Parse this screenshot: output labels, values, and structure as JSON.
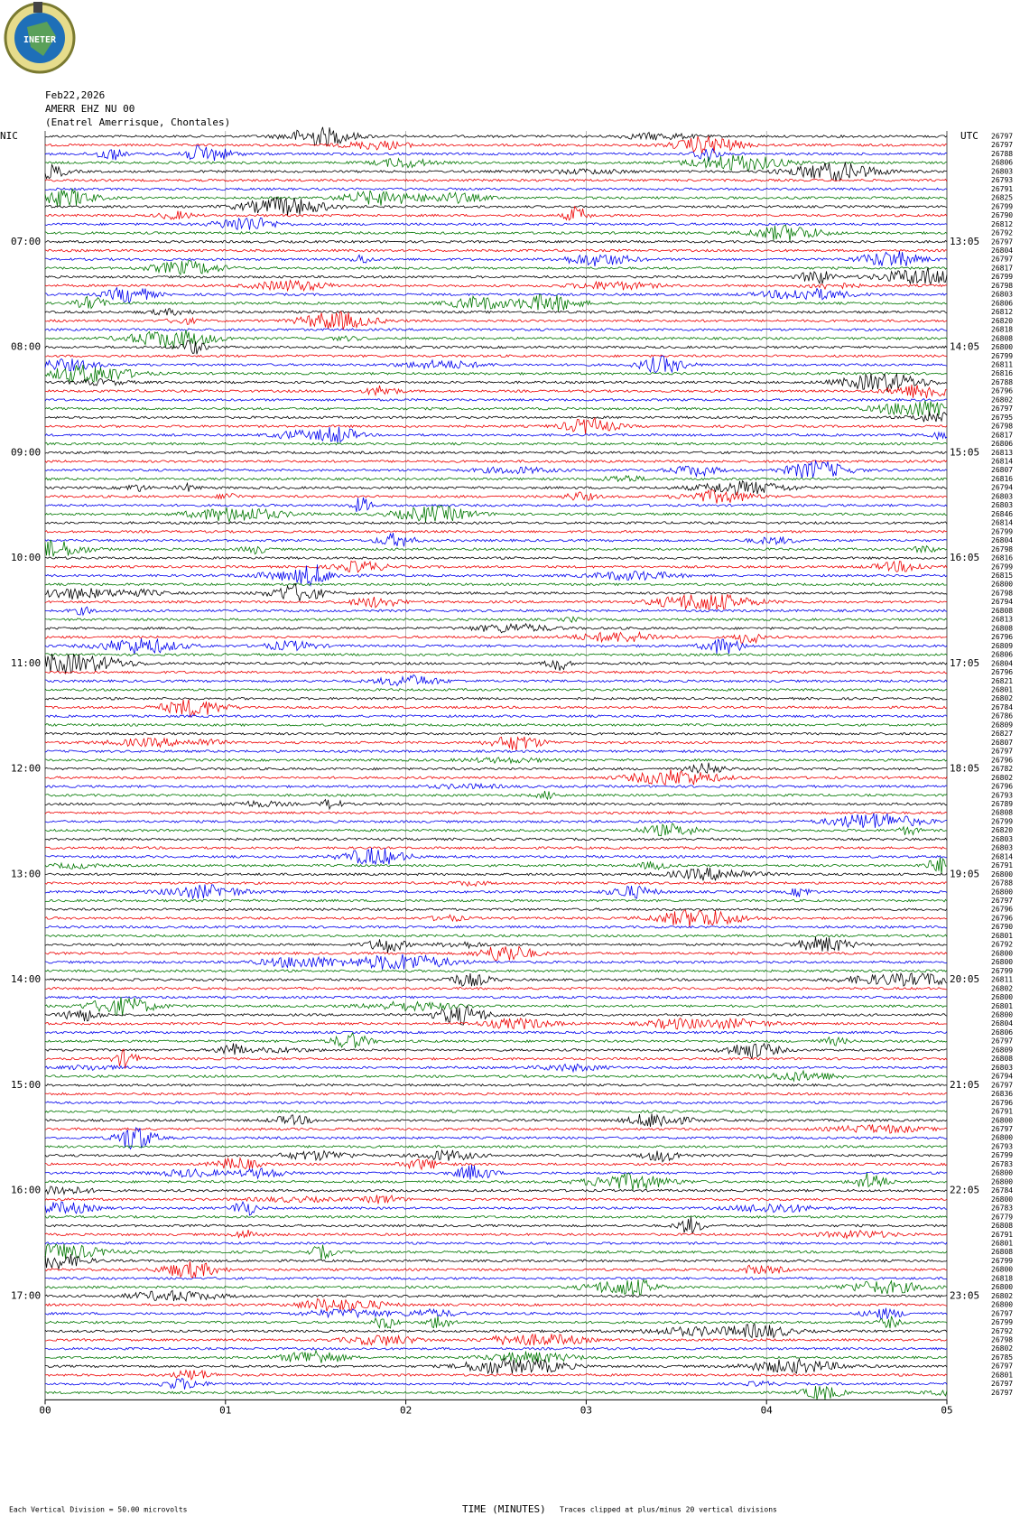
{
  "header": {
    "logo_text": "INETER",
    "date": "Feb22,2026",
    "station": "AMERR EHZ NU 00",
    "location": "(Enatrel Amerrisque, Chontales)"
  },
  "left_zone": "NIC",
  "right_zone": "UTC",
  "left_hours": [
    "07:00",
    "08:00",
    "09:00",
    "10:00",
    "11:00",
    "12:00",
    "13:00",
    "14:00",
    "15:00",
    "16:00",
    "17:00"
  ],
  "right_hours": [
    "13:05",
    "14:05",
    "15:05",
    "16:05",
    "17:05",
    "18:05",
    "19:05",
    "20:05",
    "21:05",
    "22:05",
    "23:05"
  ],
  "trace_values": [
    "26797",
    "26797",
    "26788",
    "26806",
    "26803",
    "26793",
    "26791",
    "26825",
    "26799",
    "26790",
    "26812",
    "26792",
    "26797",
    "26804",
    "26797",
    "26817",
    "26799",
    "26798",
    "26803",
    "26806",
    "26812",
    "26820",
    "26818",
    "26808",
    "26800",
    "26799",
    "26811",
    "26816",
    "26788",
    "26796",
    "26802",
    "26797",
    "26795",
    "26798",
    "26817",
    "26806",
    "26813",
    "26814",
    "26807",
    "26816",
    "26794",
    "26803",
    "26803",
    "26846",
    "26814",
    "26799",
    "26804",
    "26798",
    "26816",
    "26799",
    "26815",
    "26800",
    "26798",
    "26794",
    "26808",
    "26813",
    "26808",
    "26796",
    "26809",
    "26806",
    "26804",
    "26796",
    "26821",
    "26801",
    "26802",
    "26784",
    "26786",
    "26809",
    "26827",
    "26807",
    "26797",
    "26796",
    "26782",
    "26802",
    "26796",
    "26793",
    "26789",
    "26808",
    "26799",
    "26820",
    "26803",
    "26803",
    "26814",
    "26791",
    "26800",
    "26788",
    "26800",
    "26797",
    "26796",
    "26796",
    "26790",
    "26801",
    "26792",
    "26800",
    "26800",
    "26799",
    "26811",
    "26802",
    "26800",
    "26801",
    "26800",
    "26804",
    "26806",
    "26797",
    "26809",
    "26808",
    "26803",
    "26794",
    "26797",
    "26836",
    "26796",
    "26791",
    "26800",
    "26797",
    "26800",
    "26793",
    "26799",
    "26783",
    "26800",
    "26800",
    "26784",
    "26800",
    "26783",
    "26779",
    "26808",
    "26791",
    "26801",
    "26808",
    "26799",
    "26800",
    "26818",
    "26800",
    "26802",
    "26800",
    "26797",
    "26799",
    "26792",
    "26798",
    "26802",
    "26785",
    "26797",
    "26801",
    "26797",
    "26797"
  ],
  "x_axis": {
    "xlim": [
      0,
      5
    ],
    "ticks": [
      {
        "value": 0,
        "label": "00"
      },
      {
        "value": 1,
        "label": "01"
      },
      {
        "value": 2,
        "label": "02"
      },
      {
        "value": 3,
        "label": "03"
      },
      {
        "value": 4,
        "label": "04"
      },
      {
        "value": 5,
        "label": "05"
      }
    ],
    "label": "TIME (MINUTES)"
  },
  "footer": {
    "scale_note": "Each Vertical Division =   50.00 microvolts",
    "clip_note": "Traces clipped at plus/minus 20 vertical divisions"
  }
}
